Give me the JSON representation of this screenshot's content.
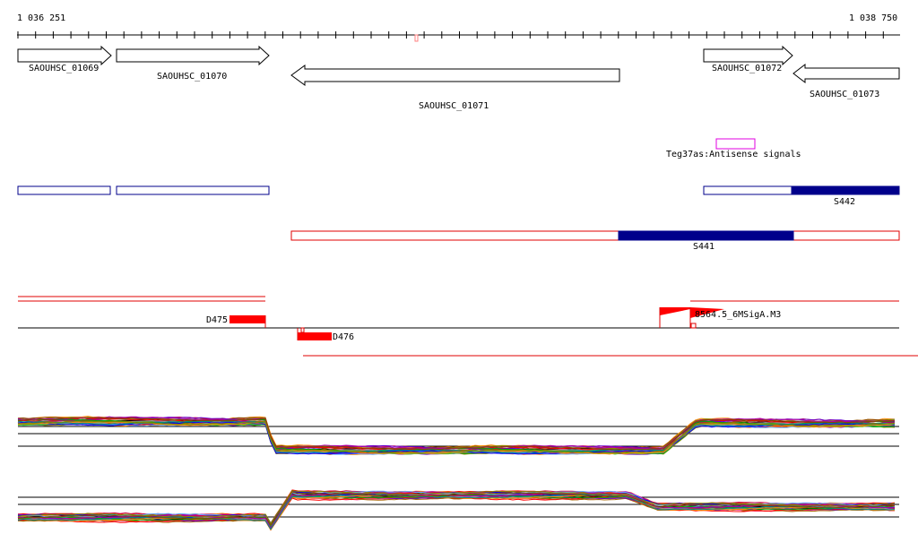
{
  "ruler": {
    "start_label": "1 036 251",
    "end_label": "1 038 750"
  },
  "genes": [
    {
      "id": "SAOUHSC_01069",
      "label": "SAOUHSC_01069",
      "strand": "+"
    },
    {
      "id": "SAOUHSC_01070",
      "label": "SAOUHSC_01070",
      "strand": "+"
    },
    {
      "id": "SAOUHSC_01071",
      "label": "SAOUHSC_01071",
      "strand": "-"
    },
    {
      "id": "SAOUHSC_01072",
      "label": "SAOUHSC_01072",
      "strand": "+"
    },
    {
      "id": "SAOUHSC_01073",
      "label": "SAOUHSC_01073",
      "strand": "-"
    }
  ],
  "antisense": {
    "label": "Teg37as:Antisense signals",
    "color": "#e000e0"
  },
  "segments_forward": {
    "label": "S442",
    "color": "#00008b"
  },
  "segments_reverse": {
    "label": "S441",
    "color": "#00008b",
    "outline_color": "#e00000"
  },
  "signals": {
    "label_d475": "D475",
    "label_d476": "D476",
    "label_m3": "8564.5_6MSigA.M3",
    "color": "#ff0000"
  },
  "expression": {
    "colors": [
      "#ff0000",
      "#0000ff",
      "#00aa00",
      "#aa00aa",
      "#ff8800",
      "#008888",
      "#884400",
      "#888800",
      "#000000",
      "#ff66aa",
      "#66aaff",
      "#44cc44",
      "#aa6600",
      "#cc0044",
      "#6600cc",
      "#999999"
    ]
  }
}
